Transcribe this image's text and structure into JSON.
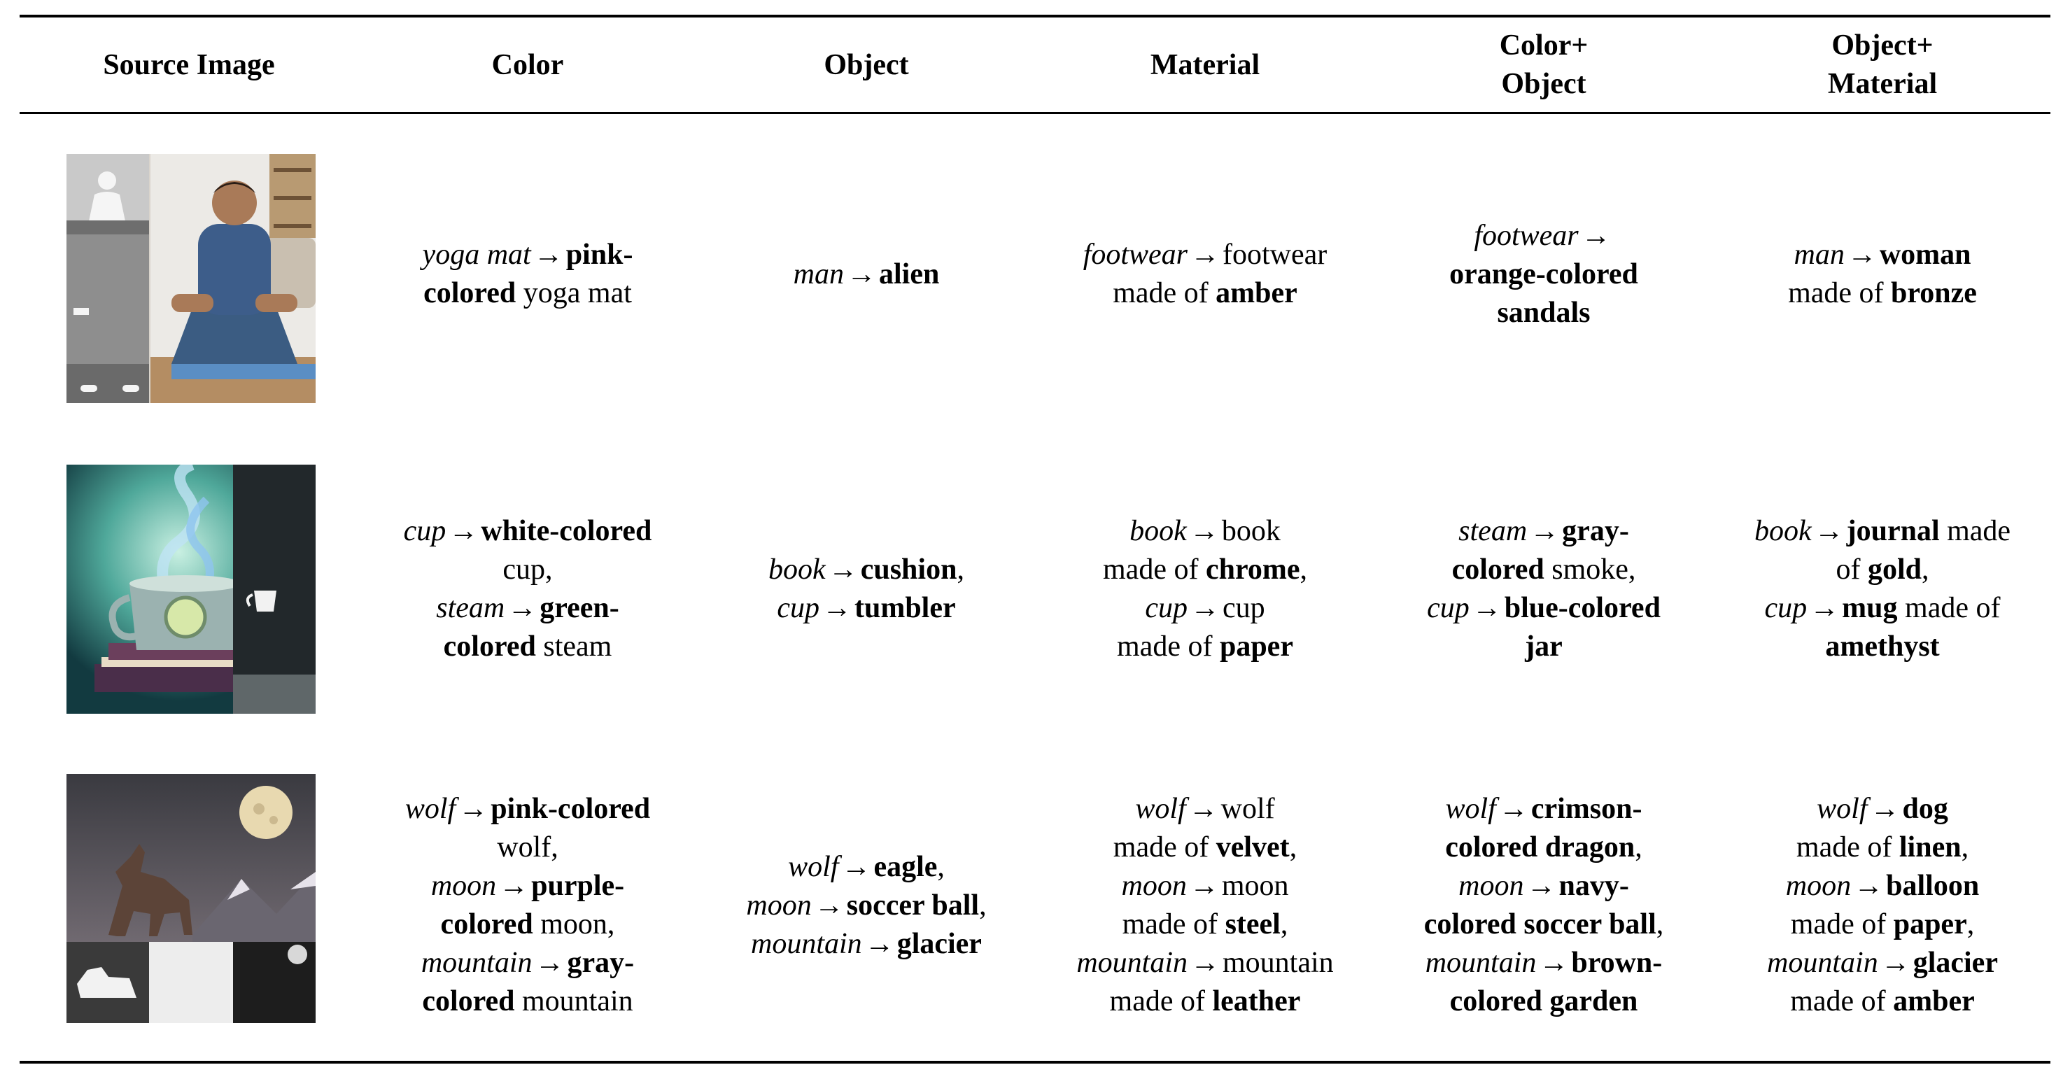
{
  "headers": [
    "Source Image",
    "Color",
    "Object",
    "Material",
    "Color+ Object",
    "Object+ Material"
  ],
  "header_lines": [
    [
      "Source Image"
    ],
    [
      "Color"
    ],
    [
      "Object"
    ],
    [
      "Material"
    ],
    [
      "Color+",
      "Object"
    ],
    [
      "Object+",
      "Material"
    ]
  ],
  "arrow": "🡒",
  "rows": [
    {
      "source_image": "yoga-meditation-man",
      "cells": [
        [
          [
            {
              "t": "yoga mat",
              "s": "it"
            },
            {
              "t": "→",
              "s": "arr"
            },
            {
              "t": "pink-",
              "s": "b"
            }
          ],
          [
            {
              "t": "colored",
              "s": "b"
            },
            {
              "t": " yoga mat",
              "s": ""
            }
          ]
        ],
        [
          [
            {
              "t": "man",
              "s": "it"
            },
            {
              "t": "→",
              "s": "arr"
            },
            {
              "t": "alien",
              "s": "b"
            }
          ]
        ],
        [
          [
            {
              "t": "footwear",
              "s": "it"
            },
            {
              "t": "→",
              "s": "arr"
            },
            {
              "t": "footwear",
              "s": ""
            }
          ],
          [
            {
              "t": "made of ",
              "s": ""
            },
            {
              "t": "amber",
              "s": "b"
            }
          ]
        ],
        [
          [
            {
              "t": "footwear",
              "s": "it"
            },
            {
              "t": "→",
              "s": "arr"
            }
          ],
          [
            {
              "t": "orange-colored",
              "s": "b"
            }
          ],
          [
            {
              "t": "sandals",
              "s": "b"
            }
          ]
        ],
        [
          [
            {
              "t": "man",
              "s": "it"
            },
            {
              "t": "→",
              "s": "arr"
            },
            {
              "t": "woman",
              "s": "b"
            }
          ],
          [
            {
              "t": "made of ",
              "s": ""
            },
            {
              "t": "bronze",
              "s": "b"
            }
          ]
        ]
      ]
    },
    {
      "source_image": "steaming-cup-on-books",
      "cells": [
        [
          [
            {
              "t": "cup",
              "s": "it"
            },
            {
              "t": "→",
              "s": "arr"
            },
            {
              "t": "white-colored",
              "s": "b"
            }
          ],
          [
            {
              "t": "cup,",
              "s": ""
            }
          ],
          [
            {
              "t": "steam",
              "s": "it"
            },
            {
              "t": "→",
              "s": "arr"
            },
            {
              "t": "green-",
              "s": "b"
            }
          ],
          [
            {
              "t": "colored",
              "s": "b"
            },
            {
              "t": " steam",
              "s": ""
            }
          ]
        ],
        [
          [
            {
              "t": "book",
              "s": "it"
            },
            {
              "t": "→",
              "s": "arr"
            },
            {
              "t": "cushion",
              "s": "b"
            },
            {
              "t": ",",
              "s": ""
            }
          ],
          [
            {
              "t": "cup",
              "s": "it"
            },
            {
              "t": "→",
              "s": "arr"
            },
            {
              "t": "tumbler",
              "s": "b"
            }
          ]
        ],
        [
          [
            {
              "t": "book",
              "s": "it"
            },
            {
              "t": "→",
              "s": "arr"
            },
            {
              "t": "book",
              "s": ""
            }
          ],
          [
            {
              "t": "made of ",
              "s": ""
            },
            {
              "t": "chrome",
              "s": "b"
            },
            {
              "t": ",",
              "s": ""
            }
          ],
          [
            {
              "t": "cup",
              "s": "it"
            },
            {
              "t": "→",
              "s": "arr"
            },
            {
              "t": "cup",
              "s": ""
            }
          ],
          [
            {
              "t": "made of ",
              "s": ""
            },
            {
              "t": "paper",
              "s": "b"
            }
          ]
        ],
        [
          [
            {
              "t": "steam",
              "s": "it"
            },
            {
              "t": "→",
              "s": "arr"
            },
            {
              "t": "gray-",
              "s": "b"
            }
          ],
          [
            {
              "t": "colored",
              "s": "b"
            },
            {
              "t": " smoke,",
              "s": ""
            }
          ],
          [
            {
              "t": "cup",
              "s": "it"
            },
            {
              "t": "→",
              "s": "arr"
            },
            {
              "t": "blue-colored",
              "s": "b"
            }
          ],
          [
            {
              "t": "jar",
              "s": "b"
            }
          ]
        ],
        [
          [
            {
              "t": "book",
              "s": "it"
            },
            {
              "t": "→",
              "s": "arr"
            },
            {
              "t": "journal",
              "s": "b"
            },
            {
              "t": " made",
              "s": ""
            }
          ],
          [
            {
              "t": "of ",
              "s": ""
            },
            {
              "t": "gold",
              "s": "b"
            },
            {
              "t": ",",
              "s": ""
            }
          ],
          [
            {
              "t": "cup",
              "s": "it"
            },
            {
              "t": "→",
              "s": "arr"
            },
            {
              "t": "mug",
              "s": "b"
            },
            {
              "t": " made of",
              "s": ""
            }
          ],
          [
            {
              "t": "amethyst",
              "s": "b"
            }
          ]
        ]
      ]
    },
    {
      "source_image": "howling-wolf-moon",
      "cells": [
        [
          [
            {
              "t": "wolf",
              "s": "it"
            },
            {
              "t": "→",
              "s": "arr"
            },
            {
              "t": "pink-colored",
              "s": "b"
            }
          ],
          [
            {
              "t": "wolf,",
              "s": ""
            }
          ],
          [
            {
              "t": "moon",
              "s": "it"
            },
            {
              "t": "→",
              "s": "arr"
            },
            {
              "t": "purple-",
              "s": "b"
            }
          ],
          [
            {
              "t": "colored",
              "s": "b"
            },
            {
              "t": " moon,",
              "s": ""
            }
          ],
          [
            {
              "t": "mountain",
              "s": "it"
            },
            {
              "t": "→",
              "s": "arr"
            },
            {
              "t": "gray-",
              "s": "b"
            }
          ],
          [
            {
              "t": "colored",
              "s": "b"
            },
            {
              "t": " mountain",
              "s": ""
            }
          ]
        ],
        [
          [
            {
              "t": "wolf",
              "s": "it"
            },
            {
              "t": "→",
              "s": "arr"
            },
            {
              "t": "eagle",
              "s": "b"
            },
            {
              "t": ",",
              "s": ""
            }
          ],
          [
            {
              "t": "moon",
              "s": "it"
            },
            {
              "t": "→",
              "s": "arr"
            },
            {
              "t": "soccer ball",
              "s": "b"
            },
            {
              "t": ",",
              "s": ""
            }
          ],
          [
            {
              "t": "mountain",
              "s": "it"
            },
            {
              "t": "→",
              "s": "arr"
            },
            {
              "t": "glacier",
              "s": "b"
            }
          ]
        ],
        [
          [
            {
              "t": "wolf",
              "s": "it"
            },
            {
              "t": "→",
              "s": "arr"
            },
            {
              "t": "wolf",
              "s": ""
            }
          ],
          [
            {
              "t": "made of ",
              "s": ""
            },
            {
              "t": "velvet",
              "s": "b"
            },
            {
              "t": ",",
              "s": ""
            }
          ],
          [
            {
              "t": "moon",
              "s": "it"
            },
            {
              "t": "→",
              "s": "arr"
            },
            {
              "t": "moon",
              "s": ""
            }
          ],
          [
            {
              "t": "made of ",
              "s": ""
            },
            {
              "t": "steel",
              "s": "b"
            },
            {
              "t": ",",
              "s": ""
            }
          ],
          [
            {
              "t": "mountain",
              "s": "it"
            },
            {
              "t": "→",
              "s": "arr"
            },
            {
              "t": "mountain",
              "s": ""
            }
          ],
          [
            {
              "t": "made of ",
              "s": ""
            },
            {
              "t": "leather",
              "s": "b"
            }
          ]
        ],
        [
          [
            {
              "t": "wolf",
              "s": "it"
            },
            {
              "t": "→",
              "s": "arr"
            },
            {
              "t": "crimson-",
              "s": "b"
            }
          ],
          [
            {
              "t": "colored dragon",
              "s": "b"
            },
            {
              "t": ",",
              "s": ""
            }
          ],
          [
            {
              "t": "moon",
              "s": "it"
            },
            {
              "t": "→",
              "s": "arr"
            },
            {
              "t": "navy-",
              "s": "b"
            }
          ],
          [
            {
              "t": "colored soccer ball",
              "s": "b"
            },
            {
              "t": ",",
              "s": ""
            }
          ],
          [
            {
              "t": "mountain",
              "s": "it"
            },
            {
              "t": "→",
              "s": "arr"
            },
            {
              "t": "brown-",
              "s": "b"
            }
          ],
          [
            {
              "t": "colored garden",
              "s": "b"
            }
          ]
        ],
        [
          [
            {
              "t": "wolf",
              "s": "it"
            },
            {
              "t": "→",
              "s": "arr"
            },
            {
              "t": "dog",
              "s": "b"
            }
          ],
          [
            {
              "t": "made of ",
              "s": ""
            },
            {
              "t": "linen",
              "s": "b"
            },
            {
              "t": ",",
              "s": ""
            }
          ],
          [
            {
              "t": "moon",
              "s": "it"
            },
            {
              "t": "→",
              "s": "arr"
            },
            {
              "t": "balloon",
              "s": "b"
            }
          ],
          [
            {
              "t": "made of ",
              "s": ""
            },
            {
              "t": "paper",
              "s": "b"
            },
            {
              "t": ",",
              "s": ""
            }
          ],
          [
            {
              "t": "mountain",
              "s": "it"
            },
            {
              "t": "→",
              "s": "arr"
            },
            {
              "t": "glacier",
              "s": "b"
            }
          ],
          [
            {
              "t": "made of ",
              "s": ""
            },
            {
              "t": "amber",
              "s": "b"
            }
          ]
        ]
      ]
    }
  ]
}
